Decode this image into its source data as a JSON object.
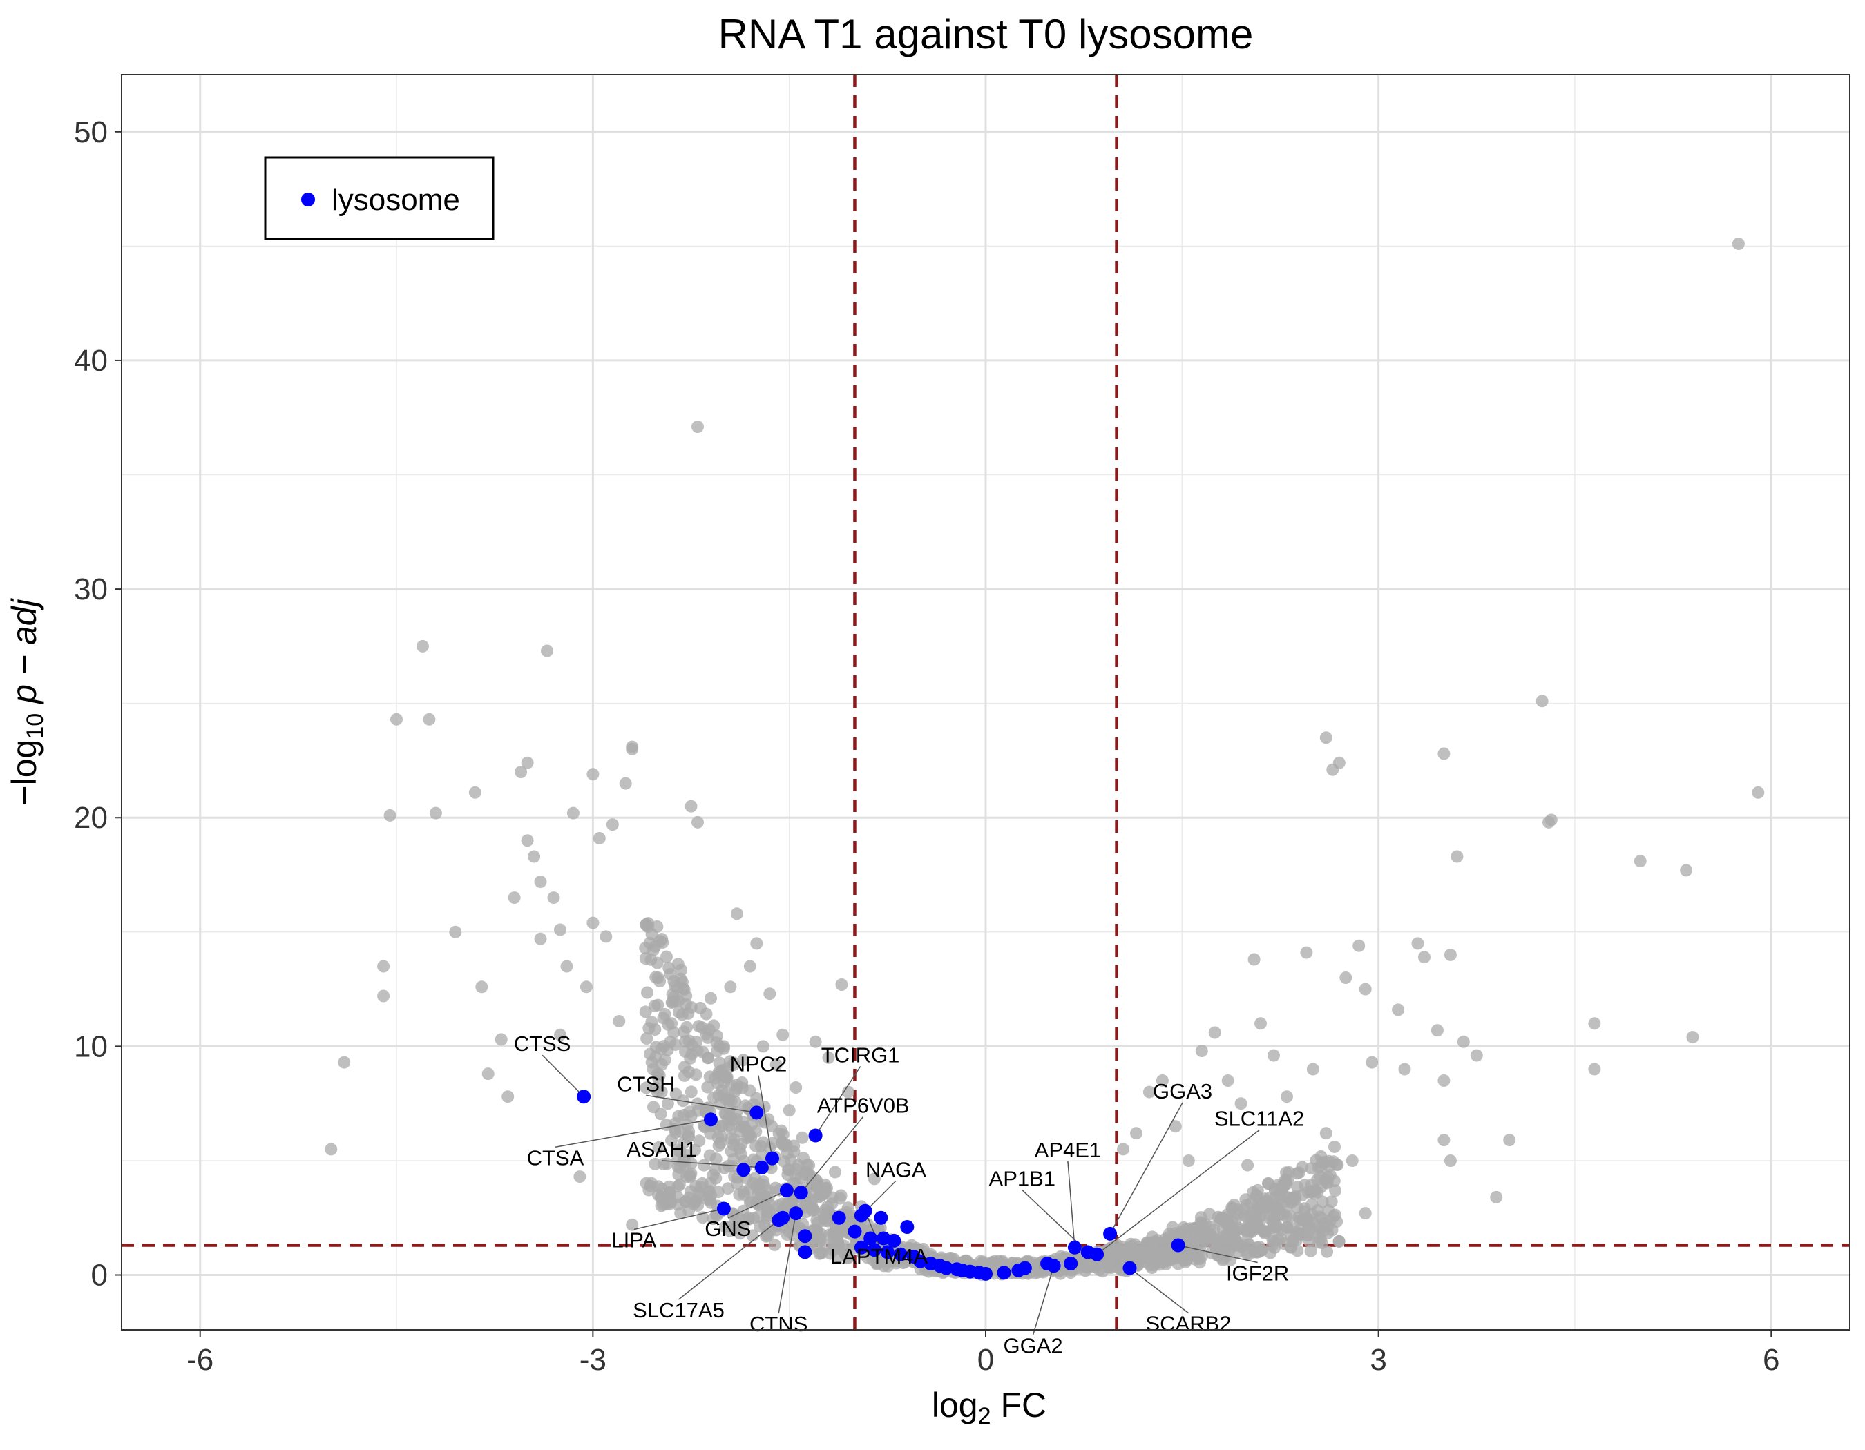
{
  "chart_data": {
    "type": "scatter",
    "title": "RNA T1 against T0 lysosome",
    "xlabel": {
      "prefix": "log",
      "sub": "2",
      "suffix": " FC"
    },
    "ylabel": {
      "prefix": "−log",
      "sub": "10",
      "suffix": " p − adj"
    },
    "xlim": [
      -6.6,
      6.6
    ],
    "ylim": [
      -2.4,
      52.5
    ],
    "x_ticks": [
      -6,
      -3,
      0,
      3,
      6
    ],
    "x_tick_labels": [
      "-6",
      "-3",
      "0",
      "3",
      "6"
    ],
    "y_ticks": [
      0,
      10,
      20,
      30,
      40,
      50
    ],
    "y_tick_labels": [
      "0",
      "10",
      "20",
      "30",
      "40",
      "50"
    ],
    "grid": true,
    "thresholds": {
      "fc_lines": [
        -1,
        1
      ],
      "padj_line": 1.3,
      "color": "#8B1A1A"
    },
    "legend": {
      "position": "top-left",
      "entries": [
        {
          "label": "lysosome",
          "color": "#0000FF"
        }
      ]
    },
    "background_color": "#A9A9A9",
    "background_points": [
      [
        -5.0,
        5.5
      ],
      [
        -4.9,
        9.3
      ],
      [
        -4.6,
        13.5
      ],
      [
        -4.6,
        12.2
      ],
      [
        -4.55,
        20.1
      ],
      [
        -4.5,
        24.3
      ],
      [
        -4.3,
        27.5
      ],
      [
        -4.25,
        24.3
      ],
      [
        -4.2,
        20.2
      ],
      [
        -4.05,
        15.0
      ],
      [
        -3.9,
        21.1
      ],
      [
        -3.85,
        12.6
      ],
      [
        -3.8,
        8.8
      ],
      [
        -3.7,
        10.3
      ],
      [
        -3.65,
        7.8
      ],
      [
        -3.6,
        16.5
      ],
      [
        -3.55,
        22.0
      ],
      [
        -3.5,
        22.4
      ],
      [
        -3.5,
        19.0
      ],
      [
        -3.45,
        18.3
      ],
      [
        -3.4,
        17.2
      ],
      [
        -3.4,
        14.7
      ],
      [
        -3.35,
        27.3
      ],
      [
        -3.3,
        16.5
      ],
      [
        -3.25,
        15.1
      ],
      [
        -3.25,
        10.5
      ],
      [
        -3.2,
        13.5
      ],
      [
        -3.15,
        20.2
      ],
      [
        -3.1,
        4.3
      ],
      [
        -3.05,
        12.6
      ],
      [
        -3.0,
        21.9
      ],
      [
        -3.0,
        15.4
      ],
      [
        -2.95,
        19.1
      ],
      [
        -2.9,
        14.8
      ],
      [
        -2.85,
        19.7
      ],
      [
        -2.8,
        11.1
      ],
      [
        -2.75,
        21.5
      ],
      [
        -2.7,
        23.0
      ],
      [
        -2.7,
        23.1
      ],
      [
        -2.6,
        14.3
      ],
      [
        -2.55,
        9.3
      ],
      [
        -2.5,
        8.6
      ],
      [
        -2.45,
        11.4
      ],
      [
        -2.4,
        11.0
      ],
      [
        -2.3,
        9.1
      ],
      [
        -2.25,
        20.5
      ],
      [
        -2.2,
        37.1
      ],
      [
        -2.2,
        19.8
      ],
      [
        -2.1,
        12.1
      ],
      [
        -2.0,
        9.9
      ],
      [
        -1.95,
        12.6
      ],
      [
        -1.9,
        15.8
      ],
      [
        -1.85,
        9.4
      ],
      [
        -1.8,
        13.5
      ],
      [
        -1.75,
        14.5
      ],
      [
        -1.7,
        10.0
      ],
      [
        -1.65,
        12.3
      ],
      [
        -1.6,
        9.2
      ],
      [
        -1.55,
        10.5
      ],
      [
        -1.45,
        8.2
      ],
      [
        -1.3,
        10.2
      ],
      [
        -1.2,
        9.5
      ],
      [
        -1.1,
        12.7
      ],
      [
        -1.05,
        8.0
      ],
      [
        -2.7,
        2.2
      ],
      [
        -2.5,
        3.5
      ],
      [
        -2.3,
        5.0
      ],
      [
        -2.1,
        6.5
      ],
      [
        -1.9,
        4.0
      ],
      [
        -1.7,
        5.8
      ],
      [
        -1.5,
        7.2
      ],
      [
        -1.4,
        6.0
      ],
      [
        -1.35,
        4.8
      ],
      [
        -1.25,
        3.5
      ],
      [
        -1.15,
        4.5
      ],
      [
        -0.95,
        3.0
      ],
      [
        -0.9,
        2.0
      ],
      [
        -0.85,
        4.2
      ],
      [
        1.05,
        5.5
      ],
      [
        1.15,
        6.2
      ],
      [
        1.25,
        8.0
      ],
      [
        1.35,
        8.5
      ],
      [
        1.45,
        6.5
      ],
      [
        1.55,
        5.0
      ],
      [
        1.65,
        9.8
      ],
      [
        1.75,
        10.6
      ],
      [
        1.85,
        8.5
      ],
      [
        1.95,
        7.5
      ],
      [
        2.05,
        13.8
      ],
      [
        2.1,
        11.0
      ],
      [
        2.2,
        9.6
      ],
      [
        2.3,
        7.8
      ],
      [
        2.45,
        14.1
      ],
      [
        2.5,
        9.0
      ],
      [
        2.6,
        23.5
      ],
      [
        2.65,
        22.1
      ],
      [
        2.7,
        22.4
      ],
      [
        2.75,
        13.0
      ],
      [
        2.85,
        14.4
      ],
      [
        2.9,
        12.5
      ],
      [
        2.95,
        9.3
      ],
      [
        2.9,
        2.7
      ],
      [
        3.15,
        11.6
      ],
      [
        3.2,
        9.0
      ],
      [
        3.3,
        14.5
      ],
      [
        3.35,
        13.9
      ],
      [
        3.45,
        10.7
      ],
      [
        3.5,
        22.8
      ],
      [
        3.5,
        8.5
      ],
      [
        3.55,
        14.0
      ],
      [
        3.6,
        18.3
      ],
      [
        3.65,
        10.2
      ],
      [
        3.75,
        9.6
      ],
      [
        3.9,
        3.4
      ],
      [
        4.0,
        5.9
      ],
      [
        4.25,
        25.1
      ],
      [
        4.3,
        19.8
      ],
      [
        4.32,
        19.9
      ],
      [
        4.65,
        11.0
      ],
      [
        4.65,
        9.0
      ],
      [
        5.0,
        18.1
      ],
      [
        5.35,
        17.7
      ],
      [
        5.4,
        10.4
      ],
      [
        5.75,
        45.1
      ],
      [
        5.9,
        21.1
      ],
      [
        3.5,
        5.9
      ],
      [
        3.55,
        5.0
      ],
      [
        2.0,
        4.8
      ],
      [
        2.3,
        3.0
      ],
      [
        1.8,
        2.5
      ],
      [
        2.6,
        6.2
      ],
      [
        2.8,
        5.0
      ]
    ],
    "lysosome_points": [
      {
        "x": -3.07,
        "y": 7.8
      },
      {
        "x": -2.1,
        "y": 6.8
      },
      {
        "x": -1.75,
        "y": 7.1
      },
      {
        "x": -1.3,
        "y": 6.1
      },
      {
        "x": -1.63,
        "y": 5.1
      },
      {
        "x": -1.85,
        "y": 4.6
      },
      {
        "x": -1.71,
        "y": 4.7
      },
      {
        "x": -2.0,
        "y": 2.9
      },
      {
        "x": -1.52,
        "y": 3.7
      },
      {
        "x": -1.41,
        "y": 3.6
      },
      {
        "x": -1.58,
        "y": 2.4
      },
      {
        "x": -1.55,
        "y": 2.5
      },
      {
        "x": -1.45,
        "y": 2.7
      },
      {
        "x": -1.38,
        "y": 1.7
      },
      {
        "x": -1.38,
        "y": 1.0
      },
      {
        "x": -1.12,
        "y": 2.5
      },
      {
        "x": -0.95,
        "y": 2.6
      },
      {
        "x": -0.92,
        "y": 2.8
      },
      {
        "x": -0.8,
        "y": 2.5
      },
      {
        "x": -0.6,
        "y": 2.1
      },
      {
        "x": -1.0,
        "y": 1.9
      },
      {
        "x": -0.88,
        "y": 1.6
      },
      {
        "x": -0.78,
        "y": 1.6
      },
      {
        "x": -0.7,
        "y": 1.5
      },
      {
        "x": -0.95,
        "y": 1.2
      },
      {
        "x": -0.85,
        "y": 1.1
      },
      {
        "x": -0.75,
        "y": 1.0
      },
      {
        "x": -0.65,
        "y": 0.9
      },
      {
        "x": -0.55,
        "y": 0.8
      },
      {
        "x": -0.5,
        "y": 0.6
      },
      {
        "x": -0.42,
        "y": 0.5
      },
      {
        "x": -0.35,
        "y": 0.4
      },
      {
        "x": -0.3,
        "y": 0.3
      },
      {
        "x": -0.22,
        "y": 0.25
      },
      {
        "x": -0.18,
        "y": 0.2
      },
      {
        "x": -0.12,
        "y": 0.15
      },
      {
        "x": -0.05,
        "y": 0.1
      },
      {
        "x": 0.0,
        "y": 0.05
      },
      {
        "x": 0.14,
        "y": 0.1
      },
      {
        "x": 0.25,
        "y": 0.2
      },
      {
        "x": 0.3,
        "y": 0.3
      },
      {
        "x": 0.47,
        "y": 0.5
      },
      {
        "x": 0.52,
        "y": 0.4
      },
      {
        "x": 0.65,
        "y": 0.5
      },
      {
        "x": 0.68,
        "y": 1.2
      },
      {
        "x": 0.78,
        "y": 1.0
      },
      {
        "x": 0.85,
        "y": 0.9
      },
      {
        "x": 0.95,
        "y": 1.8
      },
      {
        "x": 1.1,
        "y": 0.3
      },
      {
        "x": 1.47,
        "y": 1.3
      }
    ],
    "annotations": [
      {
        "label": "CTSS",
        "x": -3.07,
        "y": 7.8
      },
      {
        "label": "CTSH",
        "x": -1.75,
        "y": 7.1
      },
      {
        "label": "NPC2",
        "x": -1.63,
        "y": 5.1
      },
      {
        "label": "TCIRG1",
        "x": -1.3,
        "y": 6.1
      },
      {
        "label": "ATP6V0B",
        "x": -1.41,
        "y": 3.6
      },
      {
        "label": "CTSA",
        "x": -2.1,
        "y": 6.8
      },
      {
        "label": "ASAH1",
        "x": -1.71,
        "y": 4.7
      },
      {
        "label": "NAGA",
        "x": -0.95,
        "y": 2.6
      },
      {
        "label": "LIPA",
        "x": -2.0,
        "y": 2.9
      },
      {
        "label": "SLC17A5",
        "x": -1.58,
        "y": 2.4
      },
      {
        "label": "GNS",
        "x": -1.52,
        "y": 3.7
      },
      {
        "label": "LAPTM4A",
        "x": -0.92,
        "y": 2.8
      },
      {
        "label": "CTNS",
        "x": -1.45,
        "y": 2.7
      },
      {
        "label": "AP4E1",
        "x": 0.68,
        "y": 1.2
      },
      {
        "label": "GGA3",
        "x": 0.95,
        "y": 1.8
      },
      {
        "label": "AP1B1",
        "x": 0.78,
        "y": 1.0
      },
      {
        "label": "SLC11A2",
        "x": 0.85,
        "y": 0.9
      },
      {
        "label": "IGF2R",
        "x": 1.47,
        "y": 1.3
      },
      {
        "label": "GGA2",
        "x": 0.52,
        "y": 0.4
      },
      {
        "label": "SCARB2",
        "x": 1.1,
        "y": 0.3
      }
    ]
  }
}
